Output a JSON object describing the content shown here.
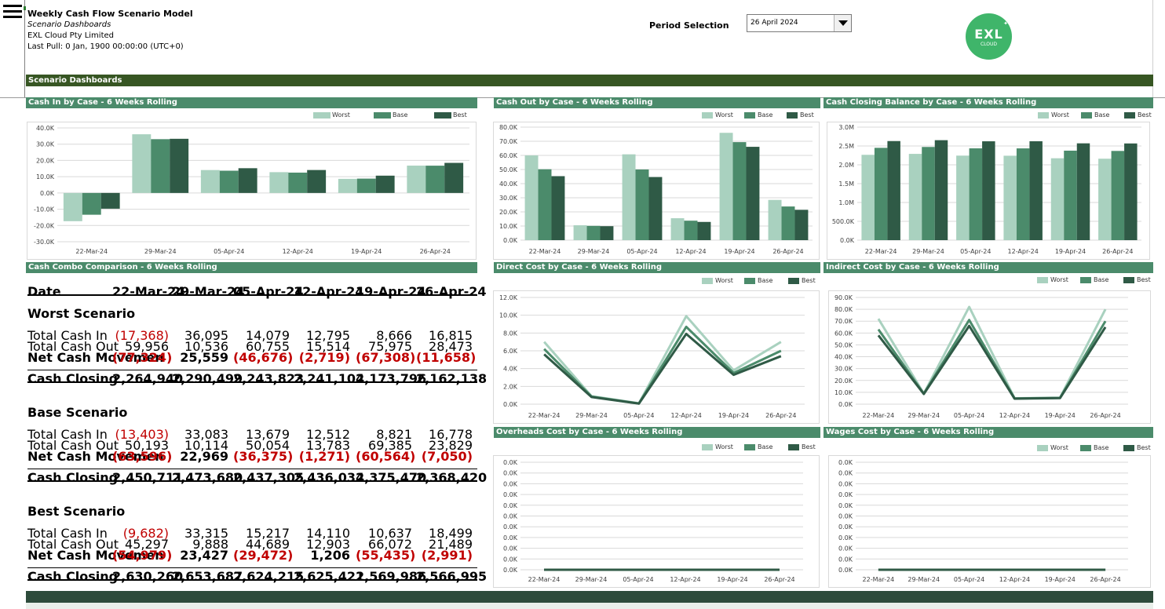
{
  "header": {
    "title": "Weekly Cash Flow Scenario Model",
    "subtitle": "Scenario Dashboards",
    "company": "EXL Cloud Pty Limited",
    "last_pull": "Last Pull: 0 Jan, 1900 00:00:00 (UTC+0)"
  },
  "period": {
    "label": "Period Selection",
    "value": "26 April 2024"
  },
  "logo": {
    "text": "EXL",
    "subtext": "CLOUD"
  },
  "banner": "Scenario Dashboards",
  "colors": {
    "worst": "#a9d1bf",
    "base": "#4b8b6b",
    "best": "#2f5a46",
    "header_bar": "#4b8b6b",
    "banner": "#375623",
    "negative": "#c00000"
  },
  "legend": {
    "worst": "Worst",
    "base": "Base",
    "best": "Best"
  },
  "sections": {
    "cash_in": "Cash In by Case - 6 Weeks Rolling",
    "cash_out": "Cash Out by Case - 6 Weeks Rolling",
    "cash_closing": "Cash Closing Balance by Case - 6 Weeks Rolling",
    "combo": "Cash Combo Comparison - 6 Weeks Rolling",
    "direct": "Direct Cost by Case - 6 Weeks Rolling",
    "indirect": "Indirect Cost by Case - 6 Weeks Rolling",
    "overheads": "Overheads Cost by Case - 6 Weeks Rolling",
    "wages": "Wages Cost by Case - 6 Weeks Rolling"
  },
  "table": {
    "date_label": "Date",
    "dates": [
      "22-Mar-24",
      "29-Mar-24",
      "05-Apr-24",
      "12-Apr-24",
      "19-Apr-24",
      "26-Apr-24"
    ],
    "labels": {
      "in": "Total Cash In",
      "out": "Total Cash Out",
      "net": "Net Cash Movemen",
      "closing": "Cash Closing"
    },
    "scenarios": [
      {
        "name": "Worst Scenario",
        "in": [
          "(17,368)",
          "36,095",
          "14,079",
          "12,795",
          "8,666",
          "16,815"
        ],
        "out": [
          "59,956",
          "10,536",
          "60,755",
          "15,514",
          "75,975",
          "28,473"
        ],
        "net": [
          "(77,324)",
          "25,559",
          "(46,676)",
          "(2,719)",
          "(67,308)",
          "(11,658)"
        ],
        "closing": [
          "2,264,940",
          "2,290,499",
          "2,243,823",
          "2,241,104",
          "2,173,796",
          "2,162,138"
        ]
      },
      {
        "name": "Base Scenario",
        "in": [
          "(13,403)",
          "33,083",
          "13,679",
          "12,512",
          "8,821",
          "16,778"
        ],
        "out": [
          "50,193",
          "10,114",
          "50,054",
          "13,783",
          "69,385",
          "23,829"
        ],
        "net": [
          "(63,596)",
          "22,969",
          "(36,375)",
          "(1,271)",
          "(60,564)",
          "(7,050)"
        ],
        "closing": [
          "2,450,711",
          "2,473,680",
          "2,437,305",
          "2,436,034",
          "2,375,470",
          "2,368,420"
        ]
      },
      {
        "name": "Best Scenario",
        "in": [
          "(9,682)",
          "33,315",
          "15,217",
          "14,110",
          "10,637",
          "18,499"
        ],
        "out": [
          "45,297",
          "9,888",
          "44,689",
          "12,903",
          "66,072",
          "21,489"
        ],
        "net": [
          "(54,979)",
          "23,427",
          "(29,472)",
          "1,206",
          "(55,435)",
          "(2,991)"
        ],
        "closing": [
          "2,630,260",
          "2,653,687",
          "2,624,215",
          "2,625,421",
          "2,569,986",
          "2,566,995"
        ]
      }
    ]
  },
  "chart_data": [
    {
      "id": "cash_in",
      "type": "bar",
      "title": "Cash In by Case - 6 Weeks Rolling",
      "categories": [
        "22-Mar-24",
        "29-Mar-24",
        "05-Apr-24",
        "12-Apr-24",
        "19-Apr-24",
        "26-Apr-24"
      ],
      "ylim": [
        -30000,
        40000
      ],
      "yticks": [
        -30000,
        -20000,
        -10000,
        0,
        10000,
        20000,
        30000,
        40000
      ],
      "ytick_labels": [
        "-30.0K",
        "-20.0K",
        "-10.0K",
        "0.0K",
        "10.0K",
        "20.0K",
        "30.0K",
        "40.0K"
      ],
      "series": [
        {
          "name": "Worst",
          "values": [
            -17368,
            36095,
            14079,
            12795,
            8666,
            16815
          ]
        },
        {
          "name": "Base",
          "values": [
            -13403,
            33083,
            13679,
            12512,
            8821,
            16778
          ]
        },
        {
          "name": "Best",
          "values": [
            -9682,
            33315,
            15217,
            14110,
            10637,
            18499
          ]
        }
      ]
    },
    {
      "id": "cash_out",
      "type": "bar",
      "title": "Cash Out by Case - 6 Weeks Rolling",
      "categories": [
        "22-Mar-24",
        "29-Mar-24",
        "05-Apr-24",
        "12-Apr-24",
        "19-Apr-24",
        "26-Apr-24"
      ],
      "ylim": [
        0,
        80000
      ],
      "yticks": [
        0,
        10000,
        20000,
        30000,
        40000,
        50000,
        60000,
        70000,
        80000
      ],
      "ytick_labels": [
        "0.0K",
        "10.0K",
        "20.0K",
        "30.0K",
        "40.0K",
        "50.0K",
        "60.0K",
        "70.0K",
        "80.0K"
      ],
      "series": [
        {
          "name": "Worst",
          "values": [
            59956,
            10536,
            60755,
            15514,
            75975,
            28473
          ]
        },
        {
          "name": "Base",
          "values": [
            50193,
            10114,
            50054,
            13783,
            69385,
            23829
          ]
        },
        {
          "name": "Best",
          "values": [
            45297,
            9888,
            44689,
            12903,
            66072,
            21489
          ]
        }
      ]
    },
    {
      "id": "cash_closing",
      "type": "bar",
      "title": "Cash Closing Balance by Case - 6 Weeks Rolling",
      "categories": [
        "22-Mar-24",
        "29-Mar-24",
        "05-Apr-24",
        "12-Apr-24",
        "19-Apr-24",
        "26-Apr-24"
      ],
      "ylim": [
        0,
        3000000
      ],
      "yticks": [
        0,
        500000,
        1000000,
        1500000,
        2000000,
        2500000,
        3000000
      ],
      "ytick_labels": [
        "0.0K",
        "500.0K",
        "1.0M",
        "1.5M",
        "2.0M",
        "2.5M",
        "3.0M"
      ],
      "series": [
        {
          "name": "Worst",
          "values": [
            2264940,
            2290499,
            2243823,
            2241104,
            2173796,
            2162138
          ]
        },
        {
          "name": "Base",
          "values": [
            2450711,
            2473680,
            2437305,
            2436034,
            2375470,
            2368420
          ]
        },
        {
          "name": "Best",
          "values": [
            2630260,
            2653687,
            2624215,
            2625421,
            2569986,
            2566995
          ]
        }
      ]
    },
    {
      "id": "direct",
      "type": "line",
      "title": "Direct Cost by Case - 6 Weeks Rolling",
      "categories": [
        "22-Mar-24",
        "29-Mar-24",
        "05-Apr-24",
        "12-Apr-24",
        "19-Apr-24",
        "26-Apr-24"
      ],
      "ylim": [
        0,
        12000
      ],
      "yticks": [
        0,
        2000,
        4000,
        6000,
        8000,
        10000,
        12000
      ],
      "ytick_labels": [
        "0.0K",
        "2.0K",
        "4.0K",
        "6.0K",
        "8.0K",
        "10.0K",
        "12.0K"
      ],
      "series": [
        {
          "name": "Worst",
          "values": [
            7000,
            900,
            100,
            9900,
            3800,
            7000
          ]
        },
        {
          "name": "Base",
          "values": [
            6200,
            850,
            80,
            8700,
            3500,
            6000
          ]
        },
        {
          "name": "Best",
          "values": [
            5600,
            800,
            60,
            7900,
            3300,
            5400
          ]
        }
      ]
    },
    {
      "id": "indirect",
      "type": "line",
      "title": "Indirect Cost by Case - 6 Weeks Rolling",
      "categories": [
        "22-Mar-24",
        "29-Mar-24",
        "05-Apr-24",
        "12-Apr-24",
        "19-Apr-24",
        "26-Apr-24"
      ],
      "ylim": [
        0,
        90000
      ],
      "yticks": [
        0,
        10000,
        20000,
        30000,
        40000,
        50000,
        60000,
        70000,
        80000,
        90000
      ],
      "ytick_labels": [
        "0.0K",
        "10.0K",
        "20.0K",
        "30.0K",
        "40.0K",
        "50.0K",
        "60.0K",
        "70.0K",
        "80.0K",
        "90.0K"
      ],
      "series": [
        {
          "name": "Worst",
          "values": [
            72000,
            9000,
            82000,
            5000,
            5500,
            80000
          ]
        },
        {
          "name": "Base",
          "values": [
            63000,
            8800,
            71000,
            4800,
            5300,
            70000
          ]
        },
        {
          "name": "Best",
          "values": [
            58000,
            8600,
            66000,
            4600,
            5100,
            65000
          ]
        }
      ]
    },
    {
      "id": "overheads",
      "type": "line",
      "title": "Overheads Cost by Case - 6 Weeks Rolling",
      "categories": [
        "22-Mar-24",
        "29-Mar-24",
        "05-Apr-24",
        "12-Apr-24",
        "19-Apr-24",
        "26-Apr-24"
      ],
      "ylim": [
        0,
        10
      ],
      "yticks": [
        0,
        1,
        2,
        3,
        4,
        5,
        6,
        7,
        8,
        9,
        10
      ],
      "ytick_labels": [
        "0.0K",
        "0.0K",
        "0.0K",
        "0.0K",
        "0.0K",
        "0.0K",
        "0.0K",
        "0.0K",
        "0.0K",
        "0.0K",
        "0.0K"
      ],
      "series": [
        {
          "name": "Worst",
          "values": [
            0,
            0,
            0,
            0,
            0,
            0
          ]
        },
        {
          "name": "Base",
          "values": [
            0,
            0,
            0,
            0,
            0,
            0
          ]
        },
        {
          "name": "Best",
          "values": [
            0,
            0,
            0,
            0,
            0,
            0
          ]
        }
      ]
    },
    {
      "id": "wages",
      "type": "line",
      "title": "Wages Cost by Case - 6 Weeks Rolling",
      "categories": [
        "22-Mar-24",
        "29-Mar-24",
        "05-Apr-24",
        "12-Apr-24",
        "19-Apr-24",
        "26-Apr-24"
      ],
      "ylim": [
        0,
        10
      ],
      "yticks": [
        0,
        1,
        2,
        3,
        4,
        5,
        6,
        7,
        8,
        9,
        10
      ],
      "ytick_labels": [
        "0.0K",
        "0.0K",
        "0.0K",
        "0.0K",
        "0.0K",
        "0.0K",
        "0.0K",
        "0.0K",
        "0.0K",
        "0.0K",
        "0.0K"
      ],
      "series": [
        {
          "name": "Worst",
          "values": [
            0,
            0,
            0,
            0,
            0,
            0
          ]
        },
        {
          "name": "Base",
          "values": [
            0,
            0,
            0,
            0,
            0,
            0
          ]
        },
        {
          "name": "Best",
          "values": [
            0,
            0,
            0,
            0,
            0,
            0
          ]
        }
      ]
    }
  ]
}
